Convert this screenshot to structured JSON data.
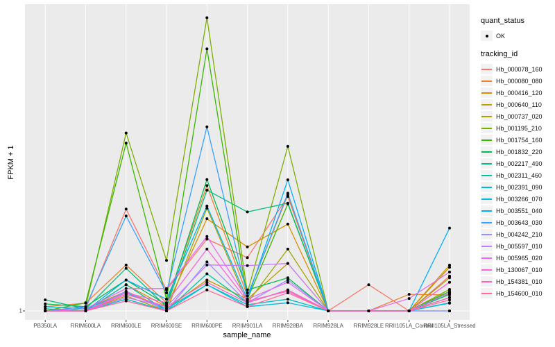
{
  "axes": {
    "x_title": "sample_name",
    "y_title": "FPKM + 1",
    "y_tick_label": "1"
  },
  "legend": {
    "quant_status_title": "quant_status",
    "ok_label": "OK",
    "tracking_title": "tracking_id"
  },
  "style": {
    "panel_bg": "#ebebeb",
    "grid_color": "#ffffff",
    "point_color": "#000000",
    "tick_color": "#333333"
  },
  "chart_data": {
    "type": "line",
    "title": "",
    "xlabel": "sample_name",
    "ylabel": "FPKM + 1",
    "y_scale": "log10",
    "y_ticks": [
      1
    ],
    "grid": "vertical-major-and-baseline",
    "legend_position": "right",
    "point_marker": "black dot (quant_status = OK) on every sample",
    "categories": [
      "PB350LA",
      "RRIM600LA",
      "RRIM600LE",
      "RRIM600SE",
      "RRIM600PE",
      "RRIM901LA",
      "RRIM928BA",
      "RRIM928LA",
      "RRIM928LE",
      "RRII105LA_Control",
      "RRII105LA_Stressed"
    ],
    "series": [
      {
        "name": "Hb_000078_160",
        "color": "#F8766D",
        "values": [
          1.0,
          1.05,
          9.8,
          1.6,
          5.0,
          3.3,
          13.0,
          1.0,
          1.8,
          1.0,
          2.18
        ]
      },
      {
        "name": "Hb_000080_080",
        "color": "#EA8331",
        "values": [
          1.1,
          1.19,
          2.8,
          1.2,
          16.6,
          1.4,
          13.5,
          1.0,
          1.0,
          1.45,
          1.43
        ]
      },
      {
        "name": "Hb_000416_120",
        "color": "#D89000",
        "values": [
          1.0,
          1.0,
          1.8,
          1.1,
          7.9,
          4.2,
          7.0,
          1.0,
          1.0,
          1.0,
          2.79
        ]
      },
      {
        "name": "Hb_000640_110",
        "color": "#C09B00",
        "values": [
          1.0,
          1.05,
          1.55,
          1.05,
          2.0,
          1.3,
          2.9,
          1.0,
          1.0,
          1.0,
          2.66
        ]
      },
      {
        "name": "Hb_000737_020",
        "color": "#A3A500",
        "values": [
          1.0,
          1.0,
          1.4,
          1.0,
          10.0,
          1.2,
          4.0,
          1.0,
          1.0,
          1.0,
          2.1
        ]
      },
      {
        "name": "Hb_001195_210",
        "color": "#7CAE00",
        "values": [
          1.0,
          1.1,
          54.0,
          3.1,
          716.0,
          1.5,
          40.0,
          1.0,
          1.0,
          1.0,
          1.62
        ]
      },
      {
        "name": "Hb_001754_160",
        "color": "#39B600",
        "values": [
          1.0,
          1.2,
          43.0,
          1.3,
          356.0,
          1.3,
          11.0,
          1.0,
          1.0,
          1.0,
          1.55
        ]
      },
      {
        "name": "Hb_001832_220",
        "color": "#00BB4E",
        "values": [
          1.17,
          1.1,
          2.0,
          1.15,
          19.0,
          1.6,
          2.1,
          1.0,
          1.0,
          1.0,
          1.45
        ]
      },
      {
        "name": "Hb_002217_490",
        "color": "#00BF7D",
        "values": [
          1.28,
          1.05,
          2.6,
          1.1,
          15.0,
          9.2,
          11.2,
          1.0,
          1.0,
          1.0,
          1.5
        ]
      },
      {
        "name": "Hb_002311_460",
        "color": "#00C1A3",
        "values": [
          1.05,
          1.0,
          1.8,
          1.0,
          2.3,
          1.2,
          1.6,
          1.0,
          1.0,
          1.0,
          1.35
        ]
      },
      {
        "name": "Hb_002391_090",
        "color": "#00BFC4",
        "values": [
          1.0,
          1.0,
          1.3,
          1.0,
          1.8,
          1.15,
          1.3,
          1.0,
          1.0,
          1.0,
          1.2
        ]
      },
      {
        "name": "Hb_003266_070",
        "color": "#00BAE0",
        "values": [
          1.1,
          1.05,
          1.5,
          1.05,
          1.8,
          1.1,
          1.2,
          1.0,
          1.0,
          1.0,
          1.19
        ]
      },
      {
        "name": "Hb_003551_040",
        "color": "#00B0F6",
        "values": [
          1.0,
          1.0,
          2.0,
          1.3,
          10.5,
          1.3,
          18.9,
          1.0,
          1.0,
          1.0,
          6.4
        ]
      },
      {
        "name": "Hb_003643_030",
        "color": "#35A2FF",
        "values": [
          1.0,
          1.1,
          8.4,
          1.5,
          62.0,
          1.4,
          14.0,
          1.0,
          1.0,
          1.0,
          1.0
        ]
      },
      {
        "name": "Hb_004242_210",
        "color": "#9590FF",
        "values": [
          1.0,
          1.0,
          1.55,
          1.0,
          3.0,
          1.2,
          2.0,
          1.0,
          1.0,
          1.0,
          1.0
        ]
      },
      {
        "name": "Hb_005597_010",
        "color": "#C77CFF",
        "values": [
          1.0,
          1.0,
          1.35,
          1.1,
          2.8,
          2.76,
          2.9,
          1.0,
          1.0,
          1.0,
          1.5
        ]
      },
      {
        "name": "Hb_005965_020",
        "color": "#E76BF3",
        "values": [
          1.0,
          1.05,
          1.65,
          1.65,
          5.3,
          1.3,
          1.9,
          1.0,
          1.0,
          1.32,
          2.39
        ]
      },
      {
        "name": "Hb_130067_010",
        "color": "#FA62DB",
        "values": [
          1.0,
          1.0,
          1.5,
          1.2,
          4.0,
          1.25,
          1.55,
          1.0,
          1.0,
          1.0,
          1.9
        ]
      },
      {
        "name": "Hb_154381_010",
        "color": "#FF62BC",
        "values": [
          1.0,
          1.0,
          1.45,
          1.1,
          1.9,
          1.2,
          1.6,
          1.0,
          1.0,
          1.0,
          1.35
        ]
      },
      {
        "name": "Hb_154600_010",
        "color": "#FF6A98",
        "values": [
          1.0,
          1.0,
          1.25,
          1.0,
          1.6,
          1.1,
          1.5,
          1.0,
          1.0,
          1.0,
          1.28
        ]
      }
    ]
  }
}
